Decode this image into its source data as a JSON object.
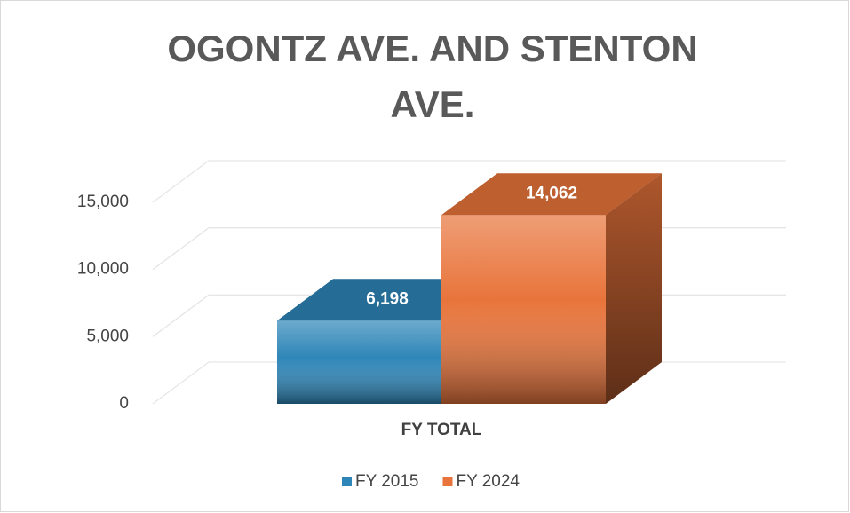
{
  "chart_data": {
    "type": "bar3d",
    "title": "OGONTZ AVE. AND STENTON AVE.",
    "categories": [
      "FY TOTAL"
    ],
    "series": [
      {
        "name": "FY 2015",
        "color": "#2e86b8",
        "values": [
          6198
        ],
        "value_labels": [
          "6,198"
        ]
      },
      {
        "name": "FY 2024",
        "color": "#e8743b",
        "values": [
          14062
        ],
        "value_labels": [
          "14,062"
        ]
      }
    ],
    "ylim": [
      0,
      15000
    ],
    "yticks": [
      0,
      {
        "value": 5000,
        "label": "5,000"
      },
      {
        "value": 10000,
        "label": "10,000"
      },
      {
        "value": 15000,
        "label": "15,000"
      }
    ],
    "grid": true,
    "legend": "bottom"
  }
}
